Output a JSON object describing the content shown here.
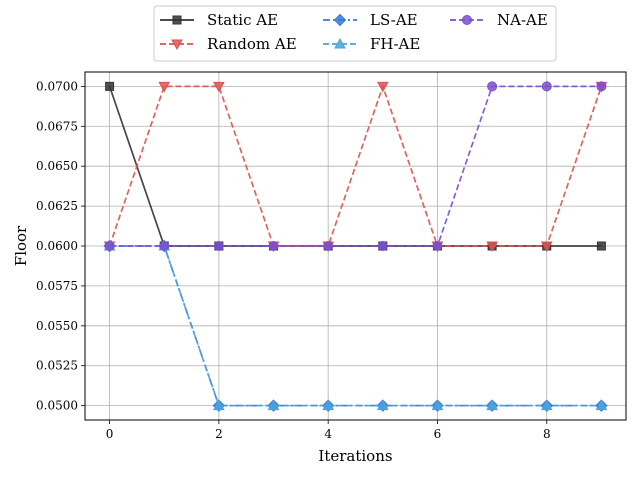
{
  "chart_data": {
    "type": "line",
    "xlabel": "Iterations",
    "ylabel": "Floor",
    "xlim": [
      -0.45,
      9.45
    ],
    "ylim": [
      0.0491,
      0.0709
    ],
    "xticks": [
      0,
      2,
      4,
      6,
      8
    ],
    "xtick_labels": [
      "0",
      "2",
      "4",
      "6",
      "8"
    ],
    "yticks": [
      0.05,
      0.0525,
      0.055,
      0.0575,
      0.06,
      0.0625,
      0.065,
      0.0675,
      0.07
    ],
    "ytick_labels": [
      "0.0500",
      "0.0525",
      "0.0550",
      "0.0575",
      "0.0600",
      "0.0625",
      "0.0650",
      "0.0675",
      "0.0700"
    ],
    "grid": true,
    "legend_placement": "top-center-outside",
    "x": [
      0,
      1,
      2,
      3,
      4,
      5,
      6,
      7,
      8,
      9
    ],
    "series": [
      {
        "name": "Static AE",
        "color": "#333333",
        "dash": "solid",
        "marker": "square",
        "values": [
          0.07,
          0.06,
          0.06,
          0.06,
          0.06,
          0.06,
          0.06,
          0.06,
          0.06,
          0.06
        ]
      },
      {
        "name": "Random AE",
        "color": "#d9534f",
        "dash": "dashed",
        "marker": "triangle-down",
        "values": [
          0.06,
          0.07,
          0.07,
          0.06,
          0.06,
          0.07,
          0.06,
          0.06,
          0.06,
          0.07
        ]
      },
      {
        "name": "LS-AE",
        "color": "#3a78d8",
        "dash": "dashdot",
        "marker": "diamond",
        "values": [
          0.06,
          0.06,
          0.05,
          0.05,
          0.05,
          0.05,
          0.05,
          0.05,
          0.05,
          0.05
        ]
      },
      {
        "name": "FH-AE",
        "color": "#4aa3d8",
        "dash": "dashed",
        "marker": "triangle-up",
        "values": [
          0.06,
          0.06,
          0.05,
          0.05,
          0.05,
          0.05,
          0.05,
          0.05,
          0.05,
          0.05
        ]
      },
      {
        "name": "NA-AE",
        "color": "#7b4fd0",
        "dash": "dashed",
        "marker": "circle",
        "values": [
          0.06,
          0.06,
          0.06,
          0.06,
          0.06,
          0.06,
          0.06,
          0.07,
          0.07,
          0.07
        ]
      }
    ]
  }
}
